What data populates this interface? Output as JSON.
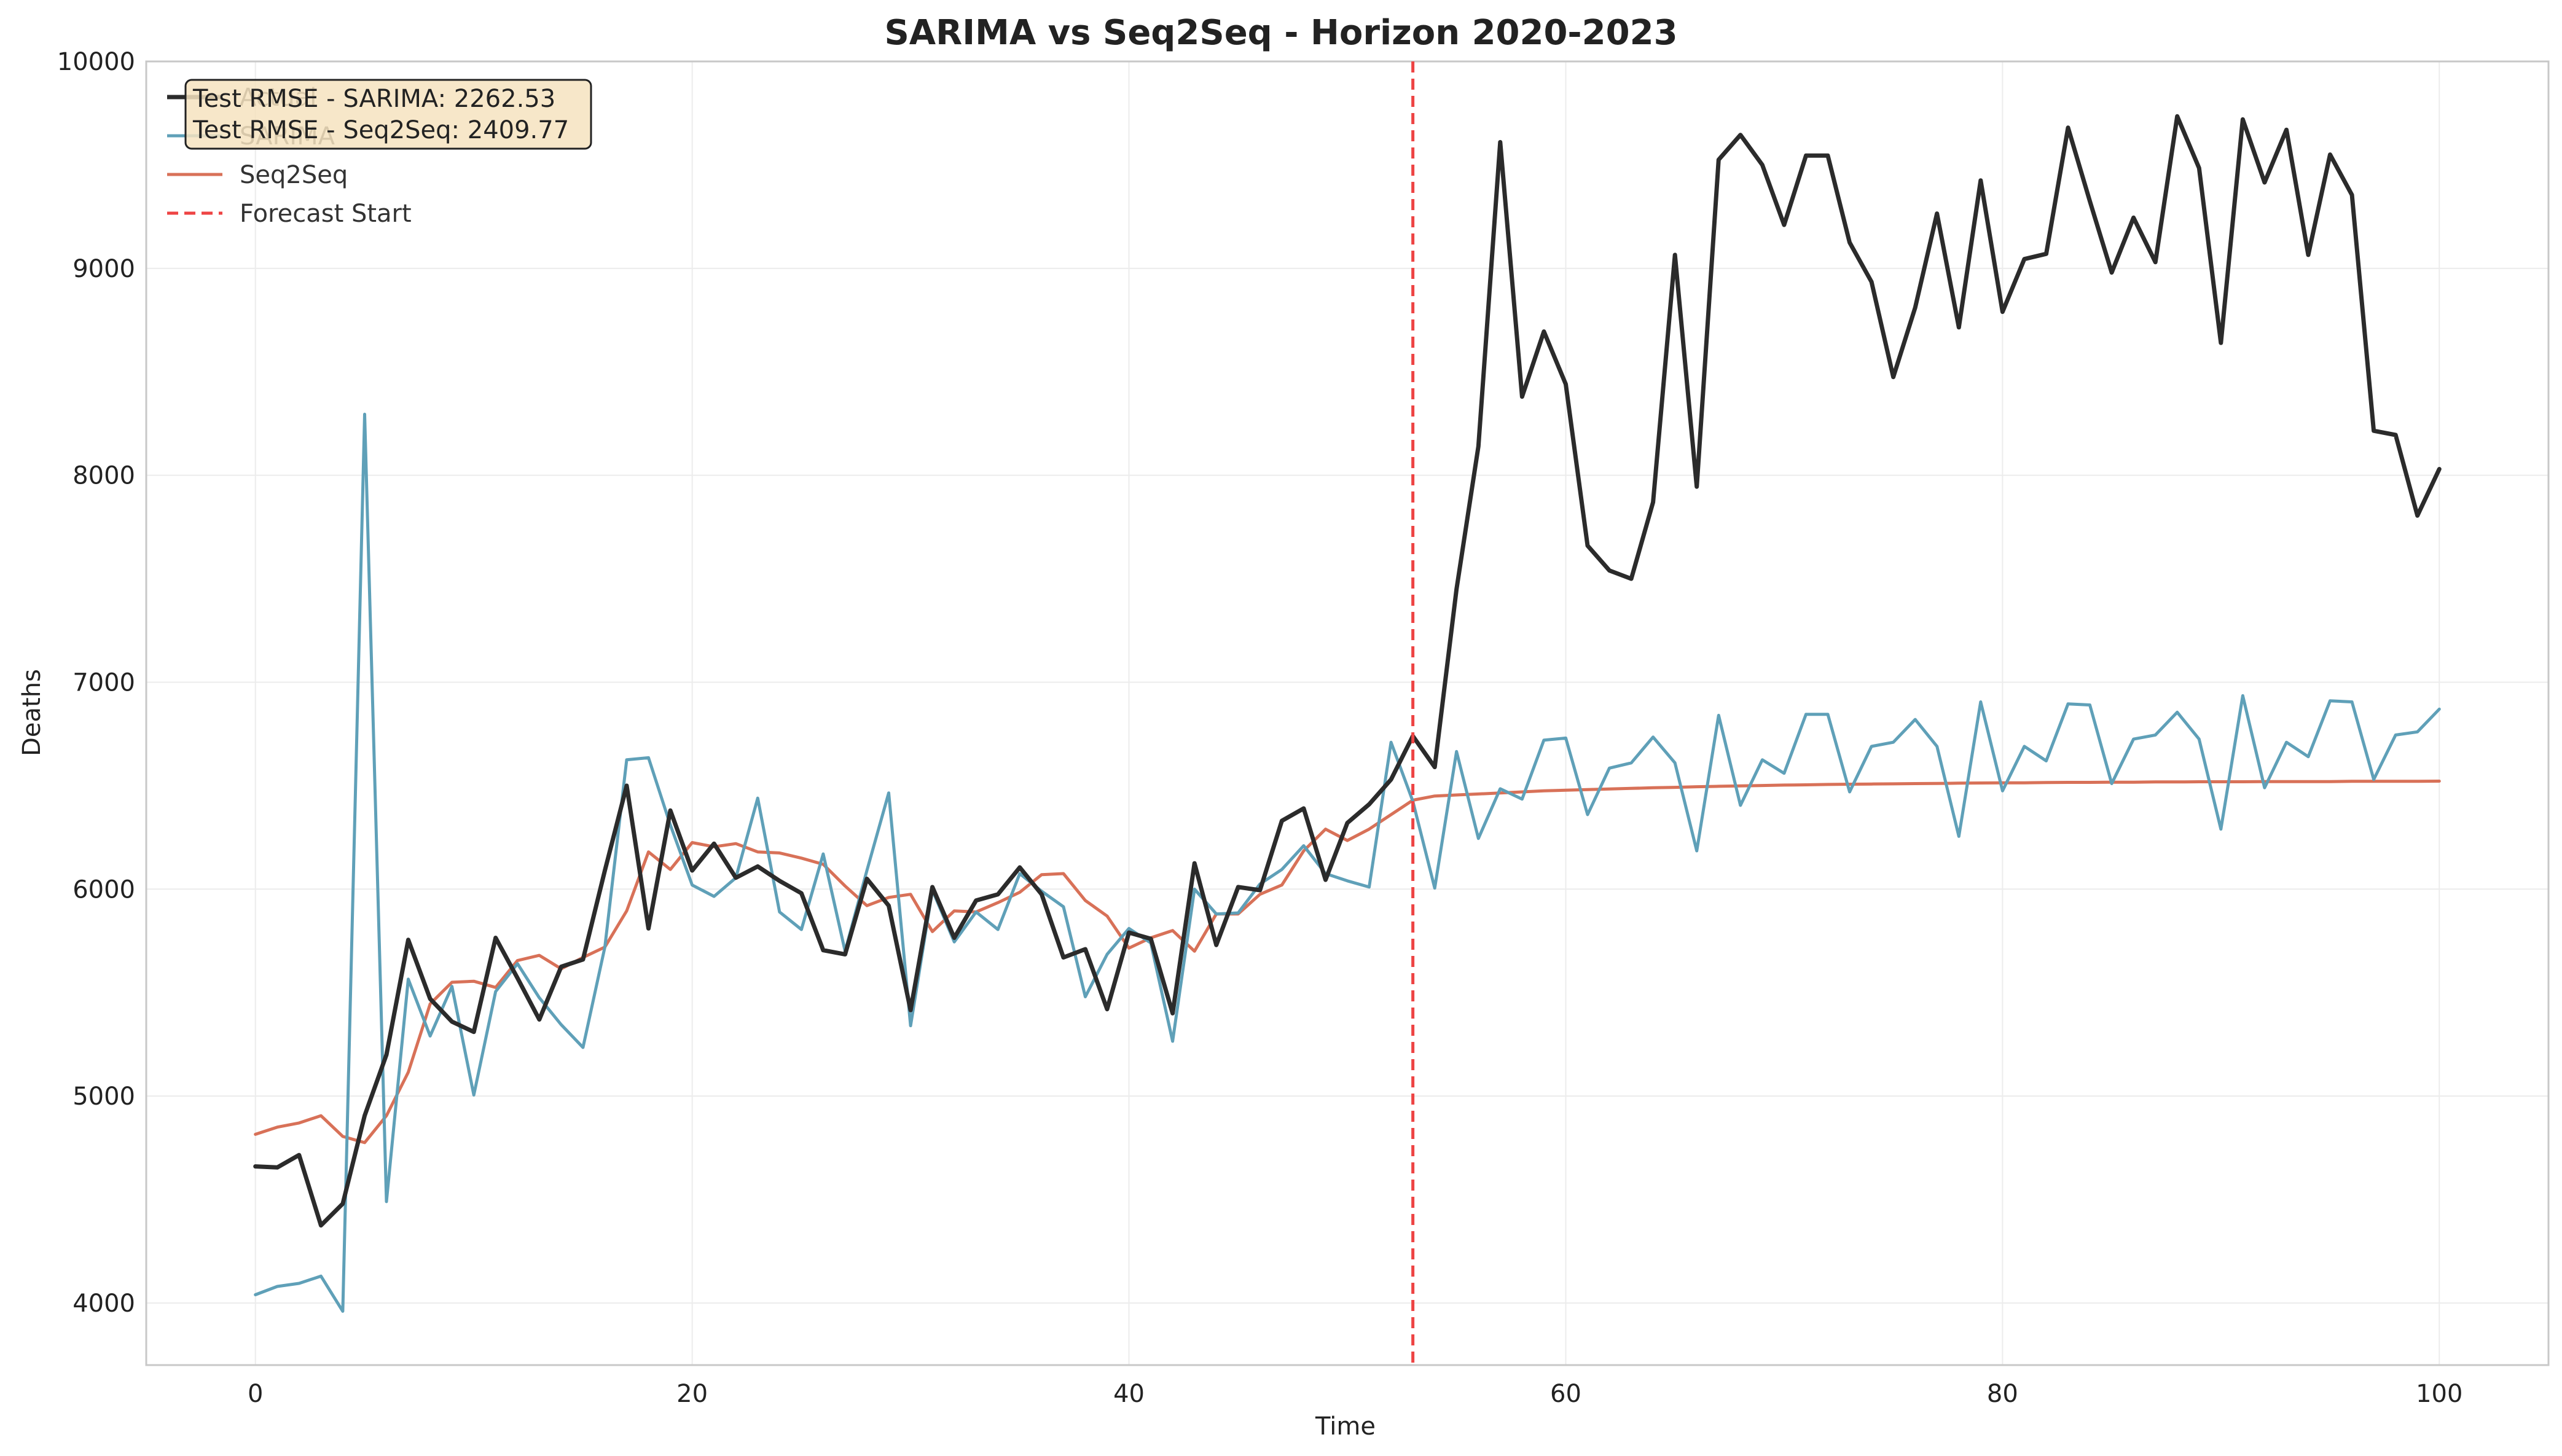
{
  "chart_data": {
    "type": "line",
    "title": "SARIMA vs Seq2Seq - Horizon 2020-2023",
    "xlabel": "Time",
    "ylabel": "Deaths",
    "xlim": [
      -5,
      105
    ],
    "ylim": [
      3700,
      10000
    ],
    "xticks": [
      0,
      20,
      40,
      60,
      80,
      100
    ],
    "yticks": [
      4000,
      5000,
      6000,
      7000,
      8000,
      9000,
      10000
    ],
    "grid": true,
    "legend_position": "top-left",
    "forecast_start": 53,
    "annotation": {
      "lines": [
        "Test RMSE - SARIMA: 2262.53",
        "Test RMSE - Seq2Seq: 2409.77"
      ],
      "background": "#f6e3bf"
    },
    "series": [
      {
        "name": "Actual",
        "color": "#2b2b2b",
        "style": "solid-thick",
        "values": [
          4660,
          4655,
          4715,
          4375,
          4480,
          4905,
          5200,
          5755,
          5470,
          5360,
          5310,
          5765,
          5570,
          5370,
          5625,
          5660,
          6090,
          6500,
          5810,
          6380,
          6090,
          6220,
          6055,
          6110,
          6040,
          5980,
          5705,
          5685,
          6050,
          5920,
          5415,
          6010,
          5765,
          5945,
          5975,
          6105,
          5975,
          5670,
          5710,
          5420,
          5790,
          5760,
          5400,
          6125,
          5730,
          6010,
          5995,
          6330,
          6390,
          6045,
          6320,
          6410,
          6530,
          6740,
          6590,
          7450,
          8140,
          9610,
          8380,
          8695,
          8440,
          7660,
          7540,
          7500,
          7870,
          9065,
          7945,
          9525,
          9645,
          9500,
          9210,
          9545,
          9545,
          9125,
          8935,
          8475,
          8810,
          9265,
          8715,
          9425,
          8790,
          9045,
          9070,
          9680,
          9325,
          8980,
          9245,
          9030,
          9735,
          9485,
          8640,
          9720,
          9415,
          9670,
          9065,
          9550,
          9355,
          8215,
          8195,
          7805,
          8030
        ]
      },
      {
        "name": "SARIMA",
        "color": "#5fa0b8",
        "style": "solid",
        "values": [
          4040,
          4080,
          4095,
          4130,
          3960,
          8295,
          4490,
          5565,
          5290,
          5530,
          5005,
          5505,
          5640,
          5475,
          5345,
          5235,
          5720,
          6625,
          6635,
          6310,
          6020,
          5965,
          6055,
          6440,
          5890,
          5805,
          6170,
          5700,
          6090,
          6465,
          5340,
          5995,
          5745,
          5890,
          5805,
          6075,
          5990,
          5915,
          5480,
          5685,
          5810,
          5740,
          5265,
          6000,
          5880,
          5885,
          6025,
          6095,
          6210,
          6075,
          6040,
          6010,
          6710,
          6425,
          6005,
          6665,
          6245,
          6485,
          6435,
          6720,
          6730,
          6360,
          6585,
          6610,
          6735,
          6610,
          6185,
          6840,
          6405,
          6625,
          6560,
          6845,
          6845,
          6470,
          6690,
          6710,
          6820,
          6690,
          6255,
          6905,
          6475,
          6690,
          6620,
          6895,
          6890,
          6510,
          6725,
          6745,
          6855,
          6725,
          6290,
          6935,
          6490,
          6710,
          6640,
          6910,
          6905,
          6530,
          6745,
          6760,
          6870
        ]
      },
      {
        "name": "Seq2Seq",
        "color": "#d87158",
        "style": "solid",
        "values": [
          4815,
          4850,
          4870,
          4905,
          4805,
          4775,
          4905,
          5115,
          5445,
          5550,
          5555,
          5525,
          5655,
          5680,
          5615,
          5670,
          5720,
          5895,
          6180,
          6095,
          6225,
          6205,
          6220,
          6180,
          6175,
          6150,
          6120,
          6015,
          5920,
          5960,
          5975,
          5795,
          5895,
          5890,
          5935,
          5985,
          6070,
          6075,
          5945,
          5870,
          5715,
          5765,
          5800,
          5700,
          5880,
          5880,
          5975,
          6020,
          6185,
          6290,
          6235,
          6290,
          6360,
          6430,
          6450,
          6455,
          6460,
          6465,
          6470,
          6475,
          6478,
          6481,
          6484,
          6487,
          6490,
          6492,
          6495,
          6497,
          6499,
          6501,
          6503,
          6504,
          6506,
          6507,
          6508,
          6509,
          6510,
          6511,
          6512,
          6513,
          6514,
          6514,
          6515,
          6516,
          6516,
          6517,
          6517,
          6518,
          6518,
          6519,
          6519,
          6519,
          6520,
          6520,
          6520,
          6520,
          6521,
          6521,
          6521,
          6521,
          6522
        ]
      }
    ],
    "legend": [
      {
        "label": "Actual",
        "color": "#2b2b2b",
        "dash": false
      },
      {
        "label": "SARIMA",
        "color": "#5fa0b8",
        "dash": false
      },
      {
        "label": "Seq2Seq",
        "color": "#d87158",
        "dash": false
      },
      {
        "label": "Forecast Start",
        "color": "#ee4444",
        "dash": true
      }
    ]
  }
}
